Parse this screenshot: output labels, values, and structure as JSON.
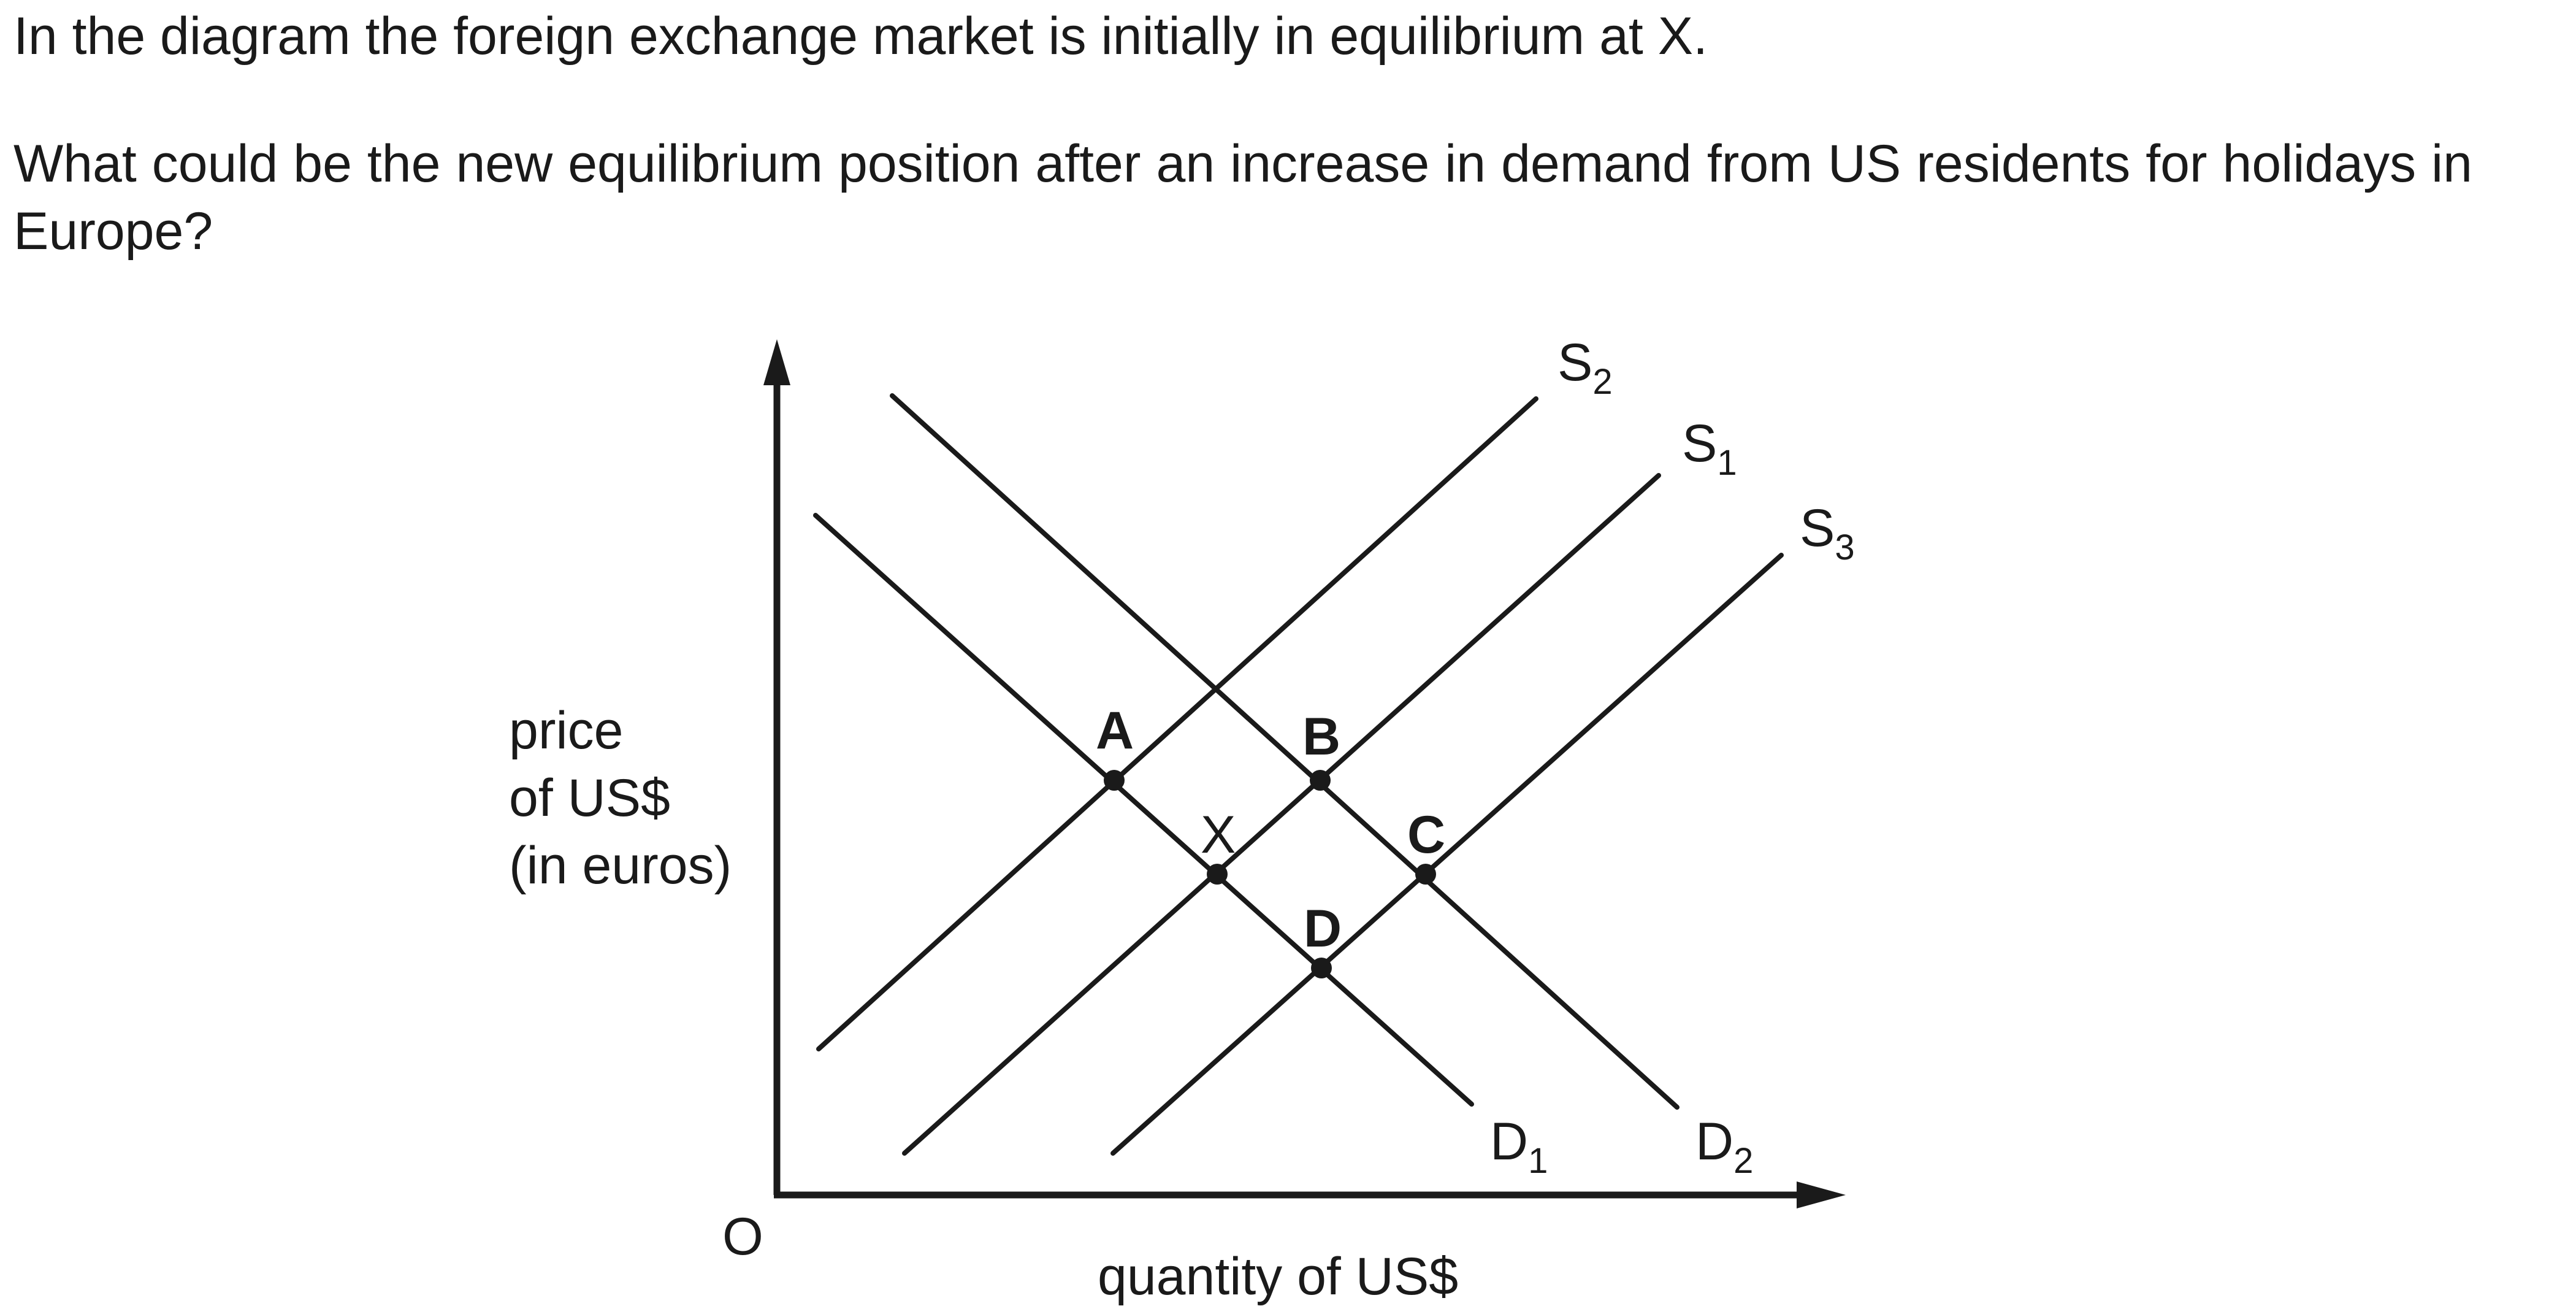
{
  "question": {
    "line1": "In the diagram the foreign exchange market is initially in equilibrium at X.",
    "line2": "What could be the new equilibrium position after an increase in demand from US residents for holidays in Europe?"
  },
  "diagram": {
    "axes": {
      "origin": "O",
      "y_label_lines": [
        "price",
        "of US$",
        "(in euros)"
      ],
      "x_label": "quantity of US$"
    },
    "curves": {
      "S2": {
        "letter": "S",
        "sub": "2"
      },
      "S1": {
        "letter": "S",
        "sub": "1"
      },
      "S3": {
        "letter": "S",
        "sub": "3"
      },
      "D1": {
        "letter": "D",
        "sub": "1"
      },
      "D2": {
        "letter": "D",
        "sub": "2"
      }
    },
    "points": {
      "A": "A",
      "B": "B",
      "X": "X",
      "C": "C",
      "D": "D"
    }
  },
  "colors": {
    "ink": "#1a1a1a",
    "background": "#ffffff"
  }
}
